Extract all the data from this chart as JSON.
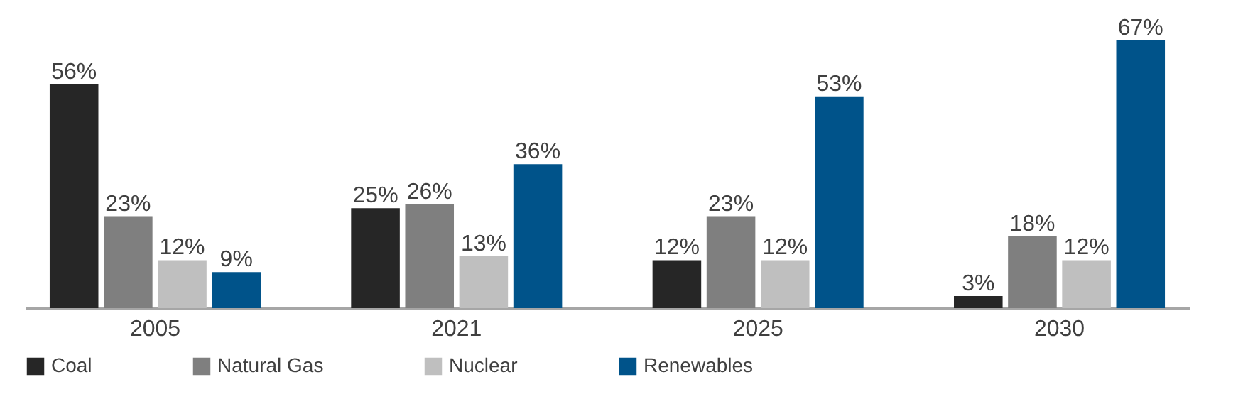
{
  "chart_data": {
    "type": "bar",
    "categories": [
      "2005",
      "2021",
      "2025",
      "2030"
    ],
    "series": [
      {
        "name": "Coal",
        "color": "#262626",
        "values": [
          56,
          25,
          12,
          3
        ],
        "value_labels": [
          "56%",
          "25%",
          "12%",
          "3%"
        ]
      },
      {
        "name": "Natural Gas",
        "color": "#7f7f7f",
        "values": [
          23,
          26,
          23,
          18
        ],
        "value_labels": [
          "23%",
          "26%",
          "23%",
          "18%"
        ]
      },
      {
        "name": "Nuclear",
        "color": "#bfbfbf",
        "values": [
          12,
          13,
          12,
          12
        ],
        "value_labels": [
          "12%",
          "13%",
          "12%",
          "12%"
        ]
      },
      {
        "name": "Renewables",
        "color": "#00538a",
        "values": [
          9,
          36,
          53,
          67
        ],
        "value_labels": [
          "9%",
          "36%",
          "53%",
          "67%"
        ]
      }
    ],
    "legend": "bottom"
  }
}
